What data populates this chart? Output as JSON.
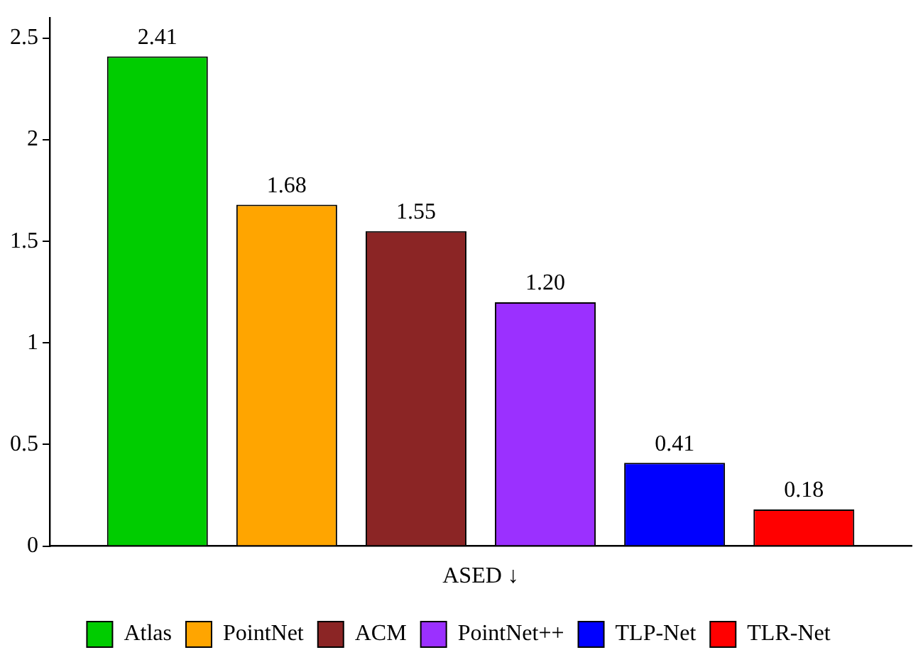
{
  "chart_data": {
    "type": "bar",
    "categories": [
      "ASED ↓"
    ],
    "series": [
      {
        "name": "Atlas",
        "color": "#00cc00",
        "values": [
          2.41
        ],
        "value_labels": [
          "2.41"
        ]
      },
      {
        "name": "PointNet",
        "color": "#ffa500",
        "values": [
          1.68
        ],
        "value_labels": [
          "1.68"
        ]
      },
      {
        "name": "ACM",
        "color": "#8b2525",
        "values": [
          1.55
        ],
        "value_labels": [
          "1.55"
        ]
      },
      {
        "name": "PointNet++",
        "color": "#9b30ff",
        "values": [
          1.2
        ],
        "value_labels": [
          "1.20"
        ]
      },
      {
        "name": "TLP-Net",
        "color": "#0000ff",
        "values": [
          0.41
        ],
        "value_labels": [
          "0.41"
        ]
      },
      {
        "name": "TLR-Net",
        "color": "#ff0000",
        "values": [
          0.18
        ],
        "value_labels": [
          "0.18"
        ]
      }
    ],
    "ylim": [
      0,
      2.6
    ],
    "yticks": [
      0,
      0.5,
      1,
      1.5,
      2,
      2.5
    ],
    "grid": false,
    "legend": "bottom"
  }
}
